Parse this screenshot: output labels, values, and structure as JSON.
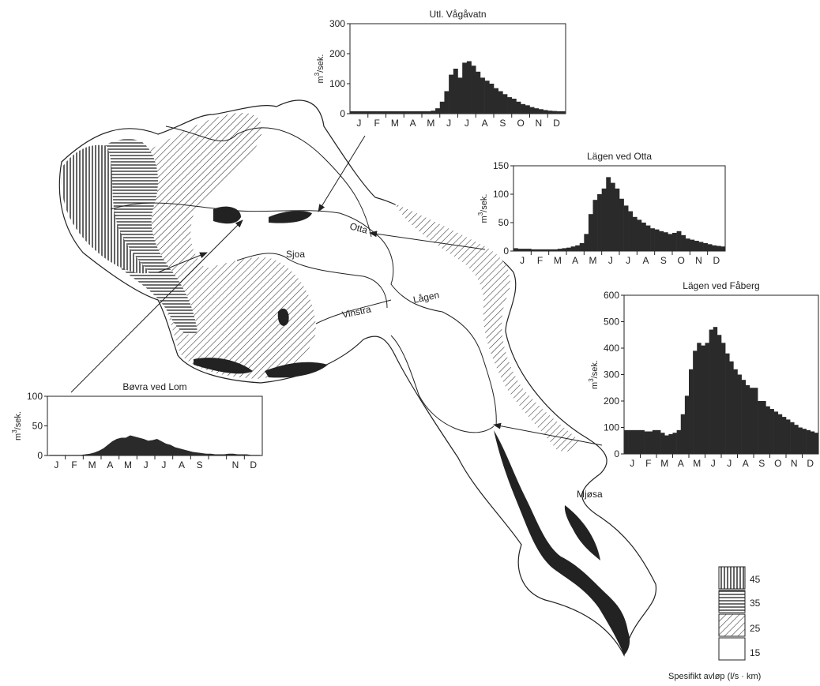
{
  "map": {
    "labels": {
      "otta": "Otta",
      "sjoa": "Sjoa",
      "vinstra": "Vinstra",
      "lagen": "Lågen",
      "mjosa": "Mjøsa"
    }
  },
  "legend": {
    "entries": [
      {
        "value": "45",
        "pattern": "vertical-lines"
      },
      {
        "value": "35",
        "pattern": "horizontal-lines"
      },
      {
        "value": "25",
        "pattern": "diagonal-lines"
      },
      {
        "value": "15",
        "pattern": "blank"
      }
    ],
    "caption": "Spesifikt avløp (l/s · km)"
  },
  "chart_data": [
    {
      "type": "bar",
      "title": "Utl. Vågåvatn",
      "ylabel": "m³/sek.",
      "yunit_base": "m",
      "yunit_exp": "3",
      "yunit_rest": "/sek.",
      "ylim": [
        0,
        300
      ],
      "yticks": [
        "300",
        "200",
        "100",
        "0"
      ],
      "months": [
        "J",
        "F",
        "M",
        "A",
        "M",
        "J",
        "J",
        "A",
        "S",
        "O",
        "N",
        "D"
      ],
      "values": [
        8,
        8,
        8,
        8,
        8,
        8,
        8,
        8,
        8,
        8,
        8,
        8,
        8,
        8,
        8,
        8,
        8,
        8,
        10,
        18,
        40,
        75,
        130,
        150,
        120,
        170,
        175,
        160,
        140,
        120,
        110,
        100,
        85,
        75,
        65,
        55,
        50,
        40,
        32,
        28,
        22,
        18,
        15,
        12,
        10,
        9,
        8,
        8
      ]
    },
    {
      "type": "bar",
      "title": "Lägen ved Otta",
      "ylabel": "m³/sek.",
      "yunit_base": "m",
      "yunit_exp": "3",
      "yunit_rest": "/sek.",
      "ylim": [
        0,
        150
      ],
      "yticks": [
        "150",
        "100",
        "50",
        "0"
      ],
      "months": [
        "J",
        "F",
        "M",
        "A",
        "M",
        "J",
        "J",
        "A",
        "S",
        "O",
        "N",
        "D"
      ],
      "values": [
        5,
        4,
        4,
        4,
        3,
        3,
        3,
        3,
        3,
        3,
        4,
        5,
        6,
        8,
        10,
        14,
        30,
        65,
        90,
        100,
        110,
        130,
        120,
        110,
        92,
        80,
        70,
        60,
        55,
        50,
        45,
        40,
        38,
        35,
        33,
        30,
        32,
        35,
        28,
        22,
        20,
        18,
        16,
        14,
        12,
        10,
        9,
        8
      ]
    },
    {
      "type": "bar",
      "title": "Lägen ved Fåberg",
      "ylabel": "m³/sek.",
      "yunit_base": "m",
      "yunit_exp": "3",
      "yunit_rest": "/sek.",
      "ylim": [
        0,
        600
      ],
      "yticks": [
        "600",
        "500",
        "400",
        "300",
        "200",
        "100",
        "0"
      ],
      "months": [
        "J",
        "F",
        "M",
        "A",
        "M",
        "J",
        "J",
        "A",
        "S",
        "O",
        "N",
        "D"
      ],
      "values": [
        90,
        90,
        90,
        90,
        90,
        85,
        85,
        90,
        90,
        80,
        70,
        75,
        80,
        90,
        150,
        220,
        320,
        390,
        420,
        410,
        420,
        470,
        480,
        450,
        420,
        380,
        350,
        320,
        300,
        280,
        260,
        250,
        250,
        200,
        200,
        180,
        170,
        160,
        150,
        140,
        130,
        120,
        110,
        100,
        95,
        90,
        85,
        80
      ]
    },
    {
      "type": "area",
      "title": "Bøvra ved Lom",
      "ylabel": "m³/sek.",
      "yunit_base": "m",
      "yunit_exp": "3",
      "yunit_rest": "/sek.",
      "ylim": [
        0,
        100
      ],
      "yticks": [
        "100",
        "50",
        "0"
      ],
      "months": [
        "J",
        "F",
        "M",
        "A",
        "M",
        "J",
        "J",
        "A",
        "S",
        "",
        "N",
        "D"
      ],
      "values": [
        1,
        1,
        1,
        1,
        1,
        1,
        1,
        1,
        2,
        3,
        5,
        8,
        12,
        18,
        24,
        28,
        30,
        30,
        34,
        32,
        30,
        28,
        25,
        26,
        28,
        24,
        20,
        18,
        14,
        12,
        10,
        8,
        6,
        5,
        4,
        3,
        3,
        2,
        2,
        2,
        3,
        3,
        2,
        2,
        2,
        1,
        1,
        1
      ]
    }
  ]
}
